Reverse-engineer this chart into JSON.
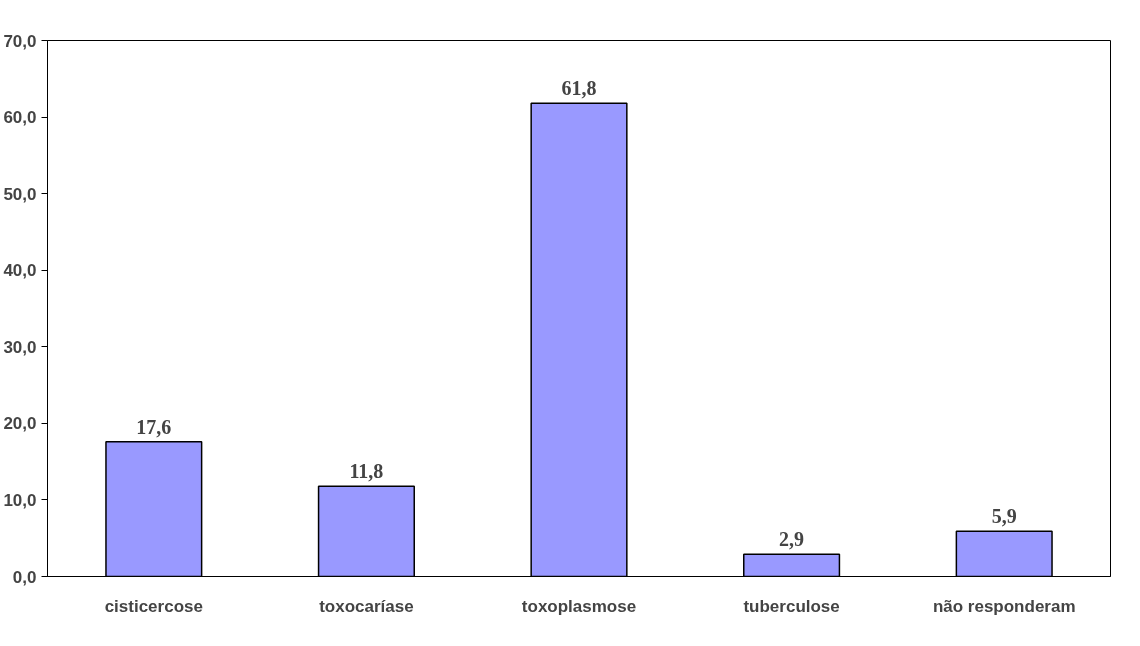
{
  "chart_data": {
    "type": "bar",
    "categories": [
      "cisticercose",
      "toxocaríase",
      "toxoplasmose",
      "tuberculose",
      "não responderam"
    ],
    "values": [
      17.6,
      11.8,
      61.8,
      2.9,
      5.9
    ],
    "value_labels": [
      "17,6",
      "11,8",
      "61,8",
      "2,9",
      "5,9"
    ],
    "color": "#9999ff",
    "ylim": [
      0,
      70
    ],
    "yticks": [
      {
        "value": 0,
        "label": "0,0"
      },
      {
        "value": 10,
        "label": "10,0"
      },
      {
        "value": 20,
        "label": "20,0"
      },
      {
        "value": 30,
        "label": "30,0"
      },
      {
        "value": 40,
        "label": "40,0"
      },
      {
        "value": 50,
        "label": "50,0"
      },
      {
        "value": 60,
        "label": "60,0"
      },
      {
        "value": 70,
        "label": "70,0"
      }
    ],
    "grid": false
  }
}
